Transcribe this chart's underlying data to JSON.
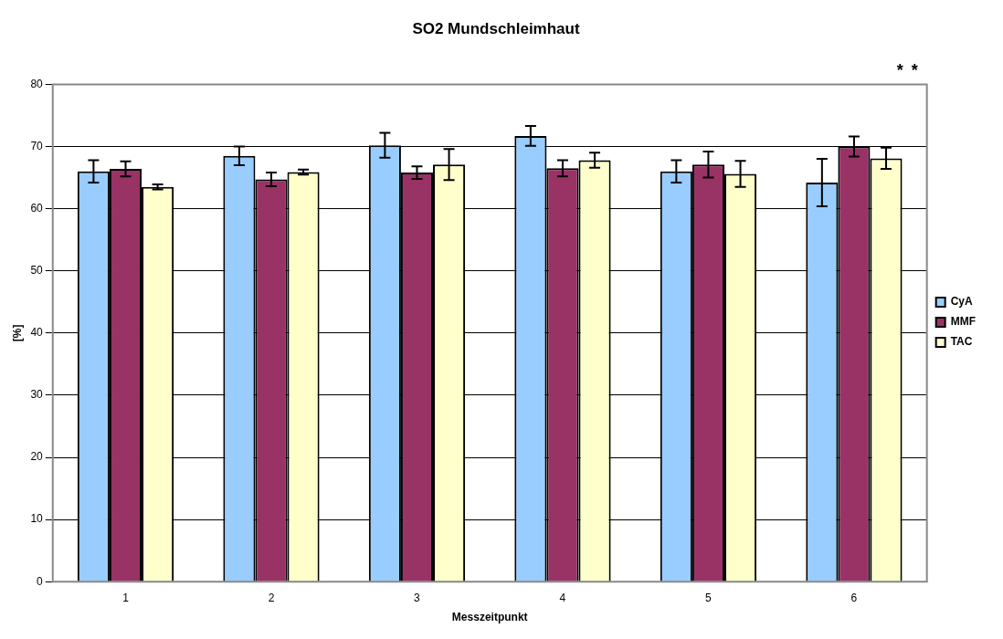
{
  "chart_data": {
    "type": "bar",
    "title": "SO2 Mundschleimhaut",
    "xlabel": "Messzeitpunkt",
    "ylabel": "[%]",
    "categories": [
      "1",
      "2",
      "3",
      "4",
      "5",
      "6"
    ],
    "series": [
      {
        "name": "CyA",
        "color": "#99ccff",
        "values": [
          66,
          68.5,
          70.2,
          71.7,
          66,
          64.2
        ],
        "errors": [
          1.8,
          1.5,
          2.0,
          1.6,
          1.8,
          3.8
        ]
      },
      {
        "name": "MMF",
        "color": "#993366",
        "values": [
          66.4,
          64.7,
          65.8,
          66.5,
          67.1,
          70
        ],
        "errors": [
          1.2,
          1.1,
          1.0,
          1.3,
          2.1,
          1.6
        ]
      },
      {
        "name": "TAC",
        "color": "#ffffcc",
        "values": [
          63.5,
          65.9,
          67.1,
          67.8,
          65.6,
          68.1
        ],
        "errors": [
          0.4,
          0.4,
          2.5,
          1.2,
          2.1,
          1.7
        ]
      }
    ],
    "ylim": [
      0,
      80
    ],
    "yticks": [
      0,
      10,
      20,
      30,
      40,
      50,
      60,
      70,
      80
    ],
    "grid": "y",
    "legend": "right",
    "annotations": [
      "*",
      "*"
    ]
  }
}
